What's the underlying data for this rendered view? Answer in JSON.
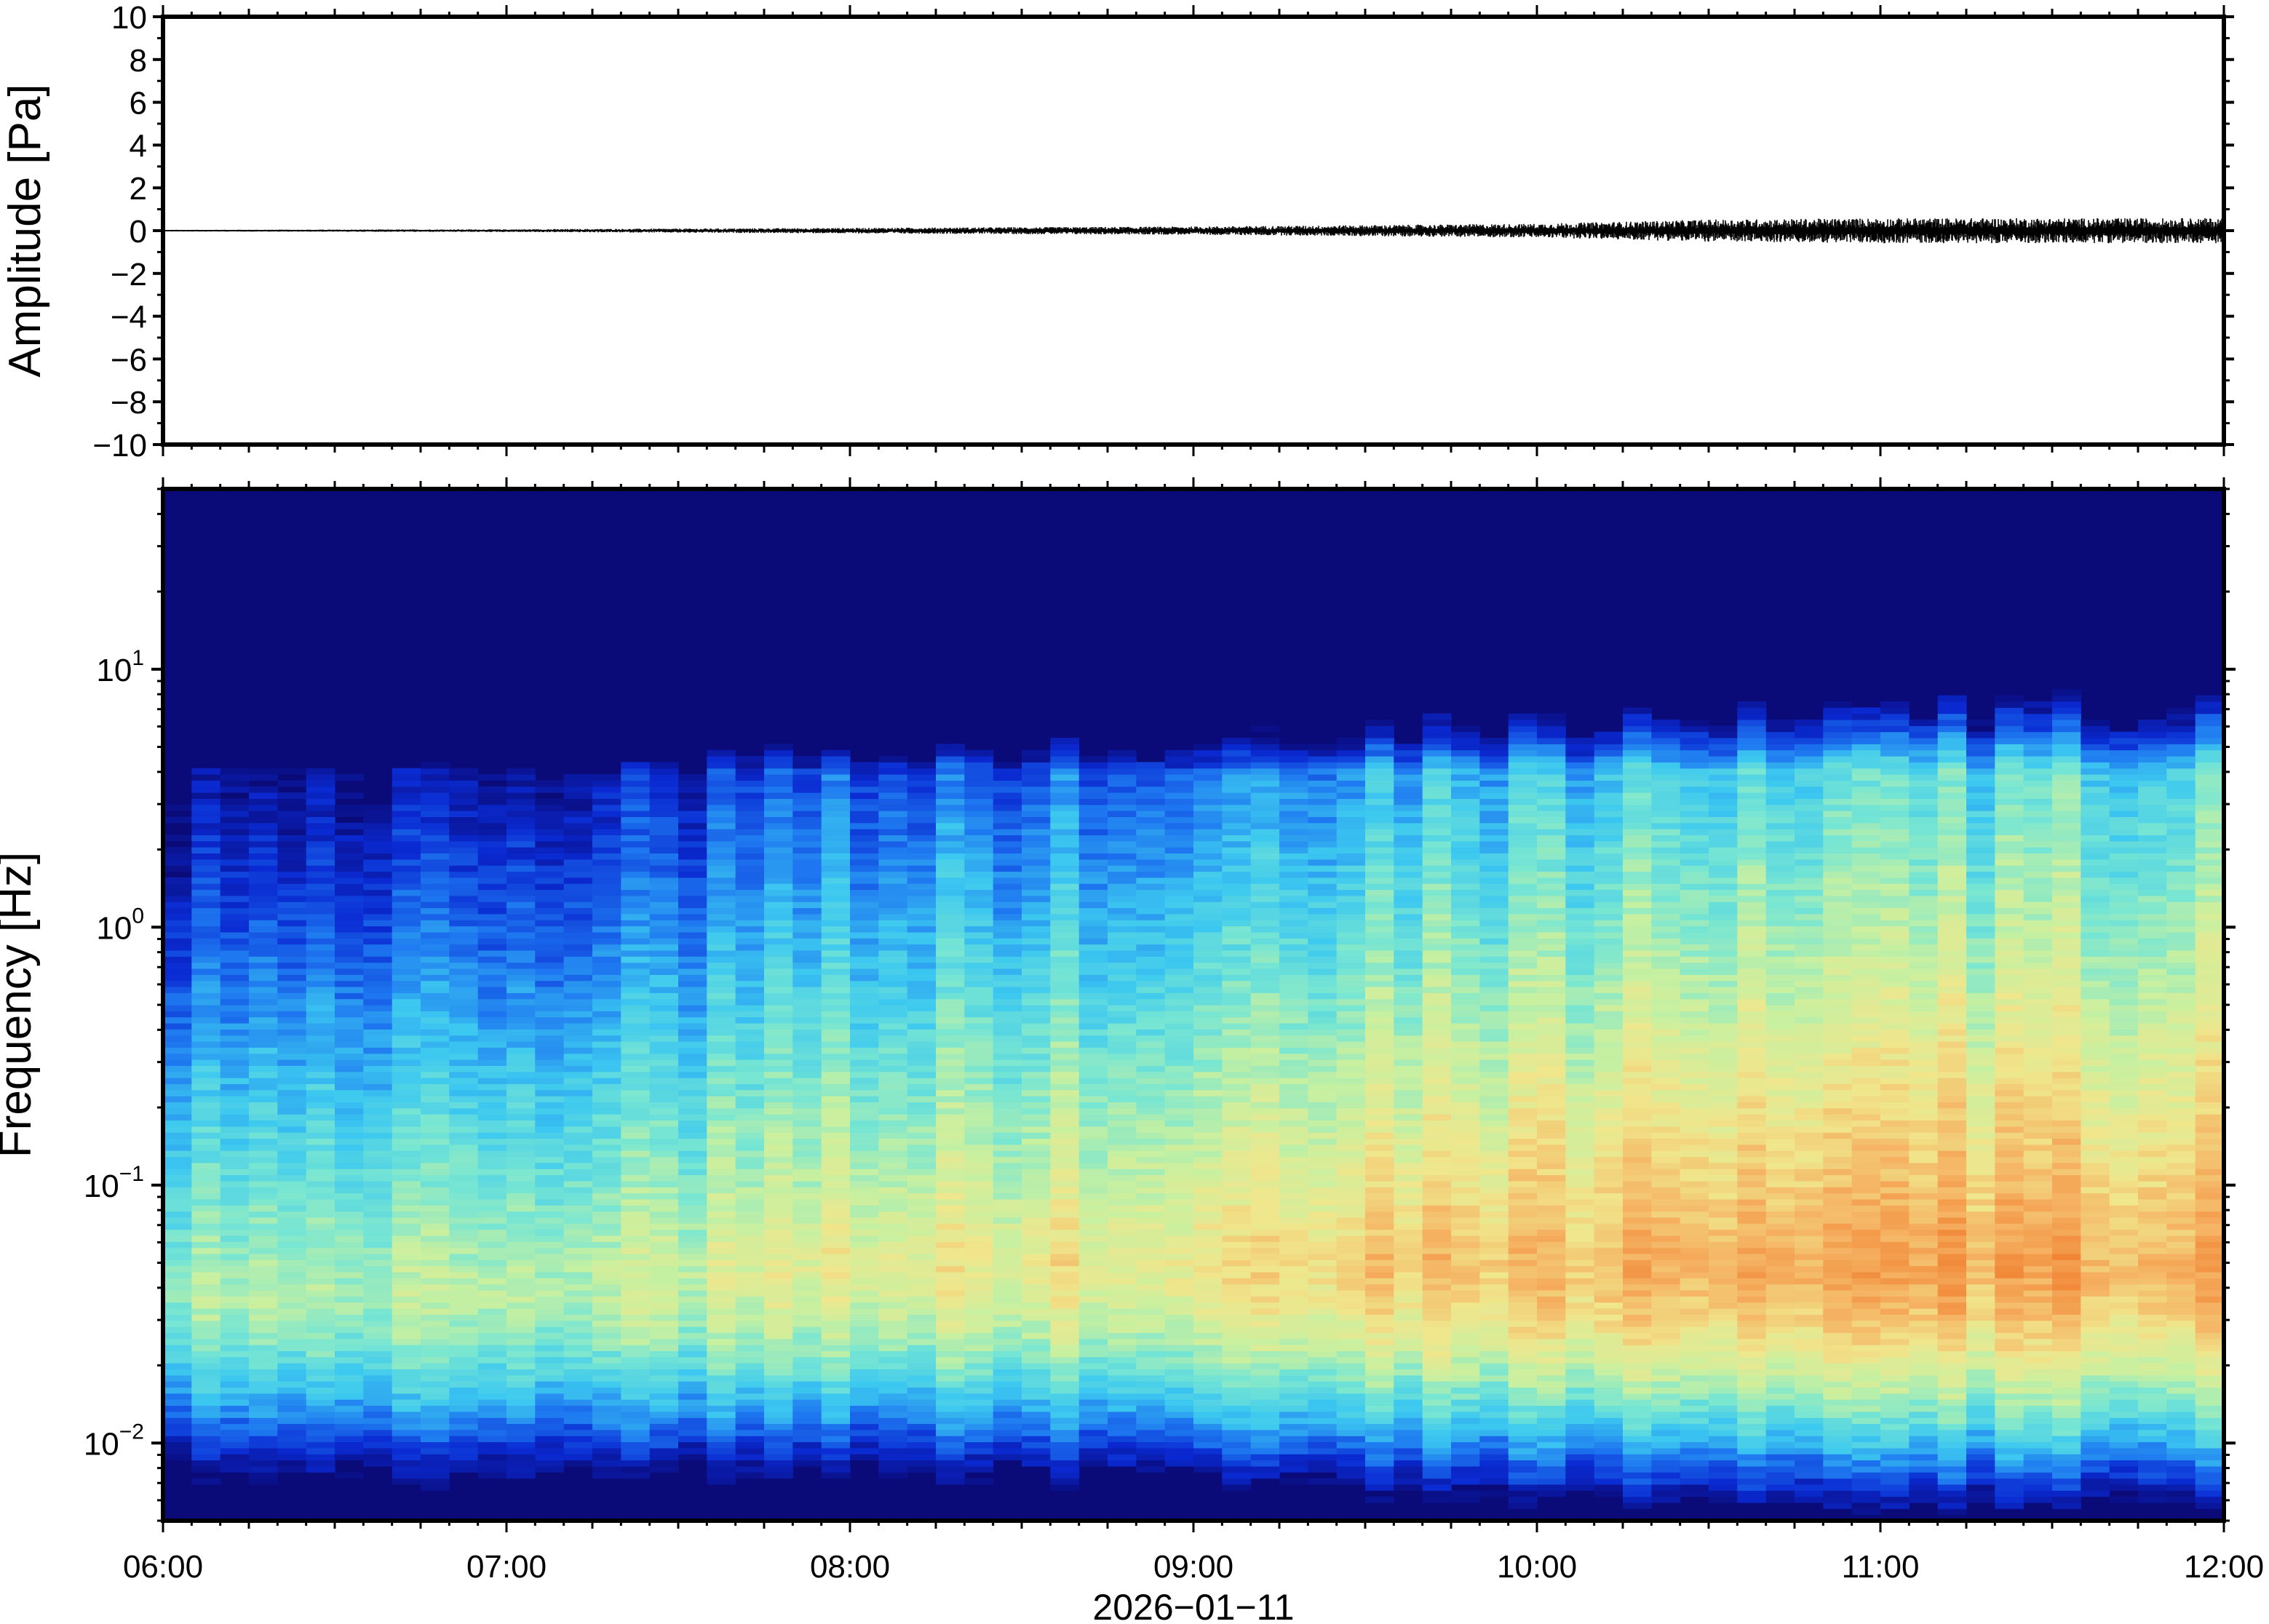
{
  "chart_data": [
    {
      "type": "line",
      "title": "",
      "xlabel": "",
      "ylabel": "Amplitude [Pa]",
      "ylim": [
        -10,
        10
      ],
      "yticks": [
        -10,
        -8,
        -6,
        -4,
        -2,
        0,
        2,
        4,
        6,
        8,
        10
      ],
      "ytick_labels": [
        "−10",
        "−8",
        "−6",
        "−4",
        "−2",
        "0",
        "2",
        "4",
        "6",
        "8",
        "10"
      ],
      "x_range": [
        "2026-01-11 06:00",
        "2026-01-11 12:00"
      ],
      "series": [
        {
          "color": "#000000",
          "description_points": {
            "x": [
              "06:00",
              "07:00",
              "08:00",
              "09:00",
              "10:00",
              "10:30",
              "11:00",
              "11:30",
              "12:00"
            ],
            "envelope": [
              0.03,
              0.05,
              0.1,
              0.15,
              0.25,
              0.4,
              0.45,
              0.45,
              0.45
            ]
          }
        }
      ],
      "grid": false
    },
    {
      "type": "heatmap",
      "title": "",
      "xlabel": "2026−01−11",
      "ylabel": "Frequency [Hz]",
      "y_scale": "log",
      "ylim": [
        0.005,
        50
      ],
      "yticks": [
        {
          "value": 0.01,
          "base": "10",
          "exp": "−2"
        },
        {
          "value": 0.1,
          "base": "10",
          "exp": "−1"
        },
        {
          "value": 1,
          "base": "10",
          "exp": "0"
        },
        {
          "value": 10,
          "base": "10",
          "exp": "1"
        }
      ],
      "xticks": [
        "06:00",
        "07:00",
        "08:00",
        "09:00",
        "10:00",
        "11:00",
        "12:00"
      ],
      "x_range": [
        "06:00",
        "12:00"
      ],
      "colormap": [
        "#0a0a78",
        "#0a2ad2",
        "#1e78f0",
        "#3cc8f0",
        "#78e6d2",
        "#c8f0a0",
        "#f0e68c",
        "#f5b464",
        "#f08232"
      ],
      "power_hint": {
        "note": "",
        "x_hours": [
          6,
          7,
          8,
          9,
          10,
          11,
          12
        ],
        "peak_frequency_hz": [
          0.04,
          0.04,
          0.05,
          0.05,
          0.05,
          0.05,
          0.05
        ],
        "relative_peak_level": [
          0.55,
          0.6,
          0.7,
          0.78,
          0.85,
          0.9,
          0.9
        ]
      },
      "grid": false
    }
  ]
}
